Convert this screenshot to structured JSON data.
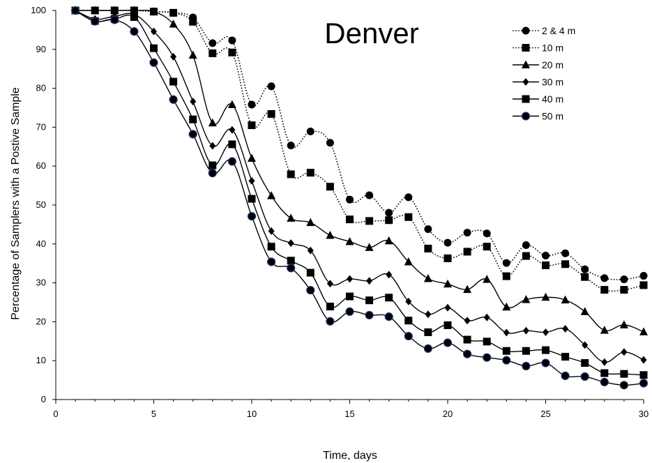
{
  "chart_data": {
    "type": "line",
    "title": "Denver",
    "xlabel": "Time, days",
    "ylabel": "Percentage of Samplers with a Postive Sample",
    "xlim": [
      0,
      30
    ],
    "ylim": [
      0,
      100
    ],
    "xticks": [
      0,
      5,
      10,
      15,
      20,
      25,
      30
    ],
    "yticks": [
      0,
      10,
      20,
      30,
      40,
      50,
      60,
      70,
      80,
      90,
      100
    ],
    "grid": false,
    "legend_position": "top-right",
    "x": [
      1,
      2,
      3,
      4,
      5,
      6,
      7,
      8,
      9,
      10,
      11,
      12,
      13,
      14,
      15,
      16,
      17,
      18,
      19,
      20,
      21,
      22,
      23,
      24,
      25,
      26,
      27,
      28,
      29,
      30
    ],
    "series": [
      {
        "name": "2 & 4 m",
        "marker": "circle",
        "line": "dotted",
        "values": [
          100,
          100,
          100,
          100,
          99.7,
          99.4,
          98.2,
          91.6,
          92.3,
          75.8,
          80.5,
          65.3,
          68.9,
          66.0,
          51.4,
          52.5,
          48.0,
          52.0,
          43.8,
          40.3,
          42.9,
          42.7,
          35.1,
          39.7,
          37.0,
          37.6,
          33.5,
          31.2,
          30.9,
          31.8
        ]
      },
      {
        "name": "10 m",
        "marker": "square",
        "line": "dotted",
        "values": [
          100,
          100,
          100,
          100,
          99.7,
          99.4,
          97.1,
          89.0,
          89.2,
          70.5,
          73.4,
          57.9,
          58.3,
          54.7,
          46.3,
          45.9,
          46.1,
          46.9,
          38.8,
          36.3,
          38.0,
          39.3,
          31.7,
          36.9,
          34.5,
          34.8,
          31.5,
          28.2,
          28.2,
          29.4
        ]
      },
      {
        "name": "20 m",
        "marker": "triangle",
        "line": "solid",
        "values": [
          100,
          100,
          100,
          100,
          99.7,
          96.5,
          88.5,
          71.1,
          75.8,
          62.0,
          52.4,
          46.6,
          45.5,
          42.2,
          40.6,
          39.1,
          40.8,
          35.4,
          31.1,
          29.7,
          28.3,
          30.9,
          23.8,
          25.7,
          26.3,
          25.6,
          22.6,
          17.8,
          19.2,
          17.4
        ]
      },
      {
        "name": "30 m",
        "marker": "diamond",
        "line": "solid",
        "values": [
          100,
          97.8,
          98.5,
          99.0,
          94.6,
          88.1,
          76.6,
          65.2,
          69.3,
          56.2,
          43.3,
          40.2,
          38.3,
          29.8,
          31.0,
          30.5,
          32.1,
          25.2,
          21.9,
          23.6,
          20.3,
          21.1,
          17.2,
          17.7,
          17.3,
          18.2,
          14.0,
          9.6,
          12.2,
          10.2
        ]
      },
      {
        "name": "40 m",
        "marker": "square",
        "line": "solid",
        "values": [
          100,
          97.3,
          97.8,
          98.3,
          90.3,
          81.7,
          72.0,
          60.2,
          65.6,
          51.6,
          39.3,
          35.7,
          32.6,
          23.9,
          26.5,
          25.5,
          26.2,
          20.3,
          17.3,
          19.1,
          15.4,
          14.9,
          12.5,
          12.5,
          12.7,
          11.0,
          9.4,
          6.8,
          6.6,
          6.3
        ]
      },
      {
        "name": "50 m",
        "marker": "circle-blue",
        "line": "solid",
        "values": [
          100,
          97.2,
          97.6,
          94.6,
          86.6,
          77.1,
          68.2,
          58.2,
          61.2,
          47.1,
          35.4,
          33.8,
          28.1,
          20.1,
          22.6,
          21.7,
          21.3,
          16.3,
          13.1,
          14.6,
          11.7,
          10.8,
          10.1,
          8.6,
          9.4,
          6.1,
          5.9,
          4.5,
          3.7,
          4.2
        ]
      }
    ]
  }
}
